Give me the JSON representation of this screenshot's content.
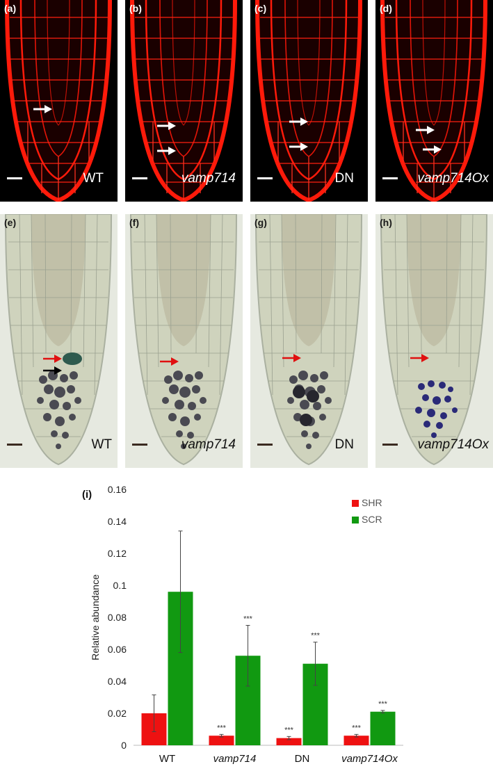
{
  "panels_top": [
    {
      "label": "(a)",
      "genotype": "WT",
      "italic": false,
      "arrows": 1
    },
    {
      "label": "(b)",
      "genotype": "vamp714",
      "italic": true,
      "arrows": 2
    },
    {
      "label": "(c)",
      "genotype": "DN",
      "italic": false,
      "arrows": 2
    },
    {
      "label": "(d)",
      "genotype": "vamp714Ox",
      "italic": true,
      "arrows": 2
    }
  ],
  "panels_bottom": [
    {
      "label": "(e)",
      "genotype": "WT",
      "italic": false
    },
    {
      "label": "(f)",
      "genotype": "vamp714",
      "italic": true
    },
    {
      "label": "(g)",
      "genotype": "DN",
      "italic": false
    },
    {
      "label": "(h)",
      "genotype": "vamp714Ox",
      "italic": true
    }
  ],
  "colors": {
    "confocal_red": "#ff1a0a",
    "brightfield_bg": "#d8dccc",
    "shr": "#ee1111",
    "scr": "#119911"
  },
  "chart_data": {
    "type": "bar",
    "panel_label": "(i)",
    "categories": [
      "WT",
      "vamp714",
      "DN",
      "vamp714Ox"
    ],
    "category_italic": [
      false,
      true,
      false,
      true
    ],
    "series": [
      {
        "name": "SHR",
        "values": [
          0.02,
          0.006,
          0.0045,
          0.006
        ],
        "errors": [
          0.0115,
          0.0008,
          0.001,
          0.0008
        ],
        "sig": [
          "",
          "***",
          "***",
          "***"
        ]
      },
      {
        "name": "SCR",
        "values": [
          0.096,
          0.056,
          0.051,
          0.021
        ],
        "errors": [
          0.038,
          0.019,
          0.0135,
          0.0008
        ],
        "sig": [
          "",
          "***",
          "***",
          "***"
        ]
      }
    ],
    "ylabel": "Relative abundance",
    "xlabel": "",
    "ylim": [
      0,
      0.16
    ],
    "yticks": [
      "0",
      "0.02",
      "0.04",
      "0.06",
      "0.08",
      "0.1",
      "0.12",
      "0.14",
      "0.16"
    ],
    "legend_placement": "top-right"
  }
}
